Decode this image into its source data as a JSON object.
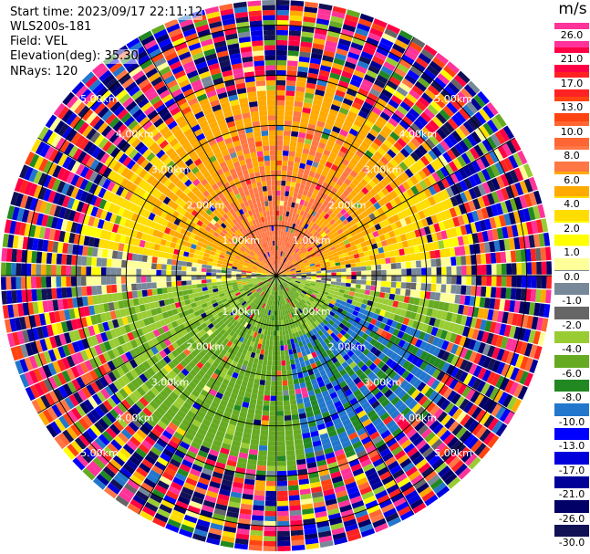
{
  "header": {
    "start_time": "Start time: 2023/09/17 22:11:12",
    "instrument": "WLS200s-181",
    "field": "Field: VEL",
    "elevation": "Elevation(deg): 35.30",
    "nrays": "NRays: 120"
  },
  "colorbar": {
    "unit": "m/s",
    "labels": [
      "26.0",
      "21.0",
      "17.0",
      "13.0",
      "10.0",
      "8.0",
      "6.0",
      "4.0",
      "2.0",
      "1.0",
      "0.0",
      "-1.0",
      "-2.0",
      "-4.0",
      "-6.0",
      "-8.0",
      "-10.0",
      "-13.0",
      "-17.0",
      "-21.0",
      "-26.0",
      "-30.0"
    ],
    "colors": [
      "#ff3399",
      "#ff0044",
      "#ff2222",
      "#ff4411",
      "#ff6633",
      "#ff7744",
      "#ffaa00",
      "#ffdd00",
      "#ffff00",
      "#ffff99",
      "#778899",
      "#666666",
      "#99cc33",
      "#66aa22",
      "#228822",
      "#2277cc",
      "#0000ff",
      "#0000dd",
      "#000099",
      "#000066",
      "#111155"
    ]
  },
  "chart_data": {
    "type": "heatmap",
    "projection": "polar (PPI radial velocity scan)",
    "field": "VEL",
    "unit": "m/s",
    "n_rays": 120,
    "elevation_deg": 35.3,
    "range_rings_km": [
      1.0,
      2.0,
      3.0,
      4.0,
      5.0
    ],
    "range_ring_labels": [
      "1.00km",
      "2.00km",
      "3.00km",
      "4.00km",
      "5.00km"
    ],
    "velocity_scale": [
      26.0,
      21.0,
      17.0,
      13.0,
      10.0,
      8.0,
      6.0,
      4.0,
      2.0,
      1.0,
      0.0,
      -1.0,
      -2.0,
      -4.0,
      -6.0,
      -8.0,
      -10.0,
      -13.0,
      -17.0,
      -21.0,
      -26.0,
      -30.0
    ],
    "pattern": {
      "north_sector_velocity": 8.0,
      "east_west_sector_velocity": 0.0,
      "south_sector_velocity": -5.0,
      "southeast_sector_velocity": -8.5,
      "outer_range_km": 3.5
    }
  }
}
